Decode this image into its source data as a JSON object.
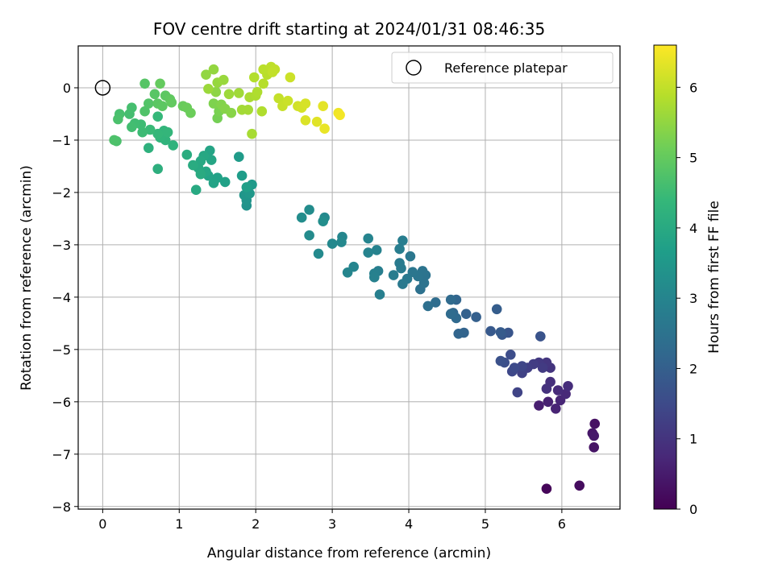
{
  "chart_data": {
    "type": "scatter",
    "title": "FOV centre drift starting at 2024/01/31 08:46:35",
    "xlabel": "Angular distance from reference (arcmin)",
    "ylabel": "Rotation from reference (arcmin)",
    "xlim": [
      -0.32,
      6.76
    ],
    "ylim": [
      -8.05,
      0.8
    ],
    "xticks": [
      0,
      1,
      2,
      3,
      4,
      5,
      6
    ],
    "yticks": [
      0,
      -1,
      -2,
      -3,
      -4,
      -5,
      -6,
      -7,
      -8
    ],
    "xtick_labels": [
      "0",
      "1",
      "2",
      "3",
      "4",
      "5",
      "6"
    ],
    "ytick_labels": [
      "0",
      "−1",
      "−2",
      "−3",
      "−4",
      "−5",
      "−6",
      "−7",
      "−8"
    ],
    "grid": true,
    "legend": {
      "placement": "top-right",
      "entries": [
        {
          "label": "Reference platepar",
          "marker": "open-circle"
        }
      ]
    },
    "reference_point": {
      "x": 0,
      "y": 0
    },
    "colorbar": {
      "label": "Hours from first FF file",
      "colormap": "viridis",
      "range": [
        0,
        6.6
      ],
      "ticks": [
        0,
        1,
        2,
        3,
        4,
        5,
        6
      ],
      "tick_labels": [
        "0",
        "1",
        "2",
        "3",
        "4",
        "5",
        "6"
      ],
      "stops": [
        "#440154",
        "#482878",
        "#3e4989",
        "#31688e",
        "#26828e",
        "#1f9e89",
        "#35b779",
        "#6ece58",
        "#b5de2b",
        "#fde725"
      ]
    },
    "points": [
      [
        5.8,
        -7.66,
        0.1
      ],
      [
        6.23,
        -7.6,
        0.2
      ],
      [
        6.43,
        -6.42,
        0.3
      ],
      [
        6.42,
        -6.87,
        0.35
      ],
      [
        6.4,
        -6.6,
        0.4
      ],
      [
        6.42,
        -6.65,
        0.45
      ],
      [
        5.7,
        -6.07,
        0.55
      ],
      [
        5.82,
        -6.0,
        0.6
      ],
      [
        5.92,
        -6.13,
        0.65
      ],
      [
        5.98,
        -5.97,
        0.7
      ],
      [
        6.05,
        -5.85,
        0.75
      ],
      [
        5.95,
        -5.78,
        0.8
      ],
      [
        6.08,
        -5.7,
        0.85
      ],
      [
        5.85,
        -5.62,
        0.9
      ],
      [
        5.8,
        -5.75,
        0.95
      ],
      [
        5.85,
        -5.35,
        1.0
      ],
      [
        5.8,
        -5.25,
        1.05
      ],
      [
        5.7,
        -5.25,
        1.1
      ],
      [
        5.75,
        -5.35,
        1.15
      ],
      [
        5.63,
        -5.28,
        1.2
      ],
      [
        5.55,
        -5.35,
        1.25
      ],
      [
        5.48,
        -5.45,
        1.3
      ],
      [
        5.42,
        -5.82,
        1.35
      ],
      [
        5.48,
        -5.32,
        1.4
      ],
      [
        5.35,
        -5.42,
        1.45
      ],
      [
        5.38,
        -5.35,
        1.5
      ],
      [
        5.33,
        -5.1,
        1.55
      ],
      [
        5.25,
        -5.25,
        1.6
      ],
      [
        5.2,
        -5.22,
        1.65
      ],
      [
        5.72,
        -4.75,
        1.7
      ],
      [
        5.3,
        -4.68,
        1.75
      ],
      [
        5.22,
        -4.72,
        1.8
      ],
      [
        5.07,
        -4.65,
        1.85
      ],
      [
        5.2,
        -4.67,
        1.9
      ],
      [
        5.15,
        -4.23,
        1.95
      ],
      [
        4.88,
        -4.38,
        2.0
      ],
      [
        4.75,
        -4.32,
        2.05
      ],
      [
        4.72,
        -4.68,
        2.1
      ],
      [
        4.65,
        -4.7,
        2.12
      ],
      [
        4.62,
        -4.05,
        2.15
      ],
      [
        4.58,
        -4.3,
        2.2
      ],
      [
        4.62,
        -4.4,
        2.25
      ],
      [
        4.55,
        -4.05,
        2.28
      ],
      [
        4.55,
        -4.32,
        2.3
      ],
      [
        4.35,
        -4.1,
        2.35
      ],
      [
        4.25,
        -4.17,
        2.4
      ],
      [
        4.15,
        -3.85,
        2.45
      ],
      [
        4.2,
        -3.73,
        2.5
      ],
      [
        4.22,
        -3.58,
        2.52
      ],
      [
        4.18,
        -3.5,
        2.55
      ],
      [
        4.12,
        -3.6,
        2.58
      ],
      [
        4.05,
        -3.52,
        2.6
      ],
      [
        4.02,
        -3.22,
        2.62
      ],
      [
        3.98,
        -3.65,
        2.65
      ],
      [
        3.92,
        -3.75,
        2.68
      ],
      [
        3.9,
        -3.45,
        2.7
      ],
      [
        3.88,
        -3.35,
        2.72
      ],
      [
        3.8,
        -3.58,
        2.75
      ],
      [
        3.92,
        -2.92,
        2.78
      ],
      [
        3.88,
        -3.08,
        2.8
      ],
      [
        3.6,
        -3.5,
        2.82
      ],
      [
        3.62,
        -3.95,
        2.85
      ],
      [
        3.55,
        -3.55,
        2.88
      ],
      [
        3.55,
        -3.62,
        2.9
      ],
      [
        3.58,
        -3.1,
        2.92
      ],
      [
        3.47,
        -3.15,
        2.95
      ],
      [
        3.47,
        -2.88,
        2.98
      ],
      [
        3.28,
        -3.42,
        3.0
      ],
      [
        3.2,
        -3.53,
        3.02
      ],
      [
        3.13,
        -2.85,
        3.05
      ],
      [
        3.12,
        -2.95,
        3.08
      ],
      [
        3.0,
        -2.98,
        3.1
      ],
      [
        2.9,
        -2.48,
        3.12
      ],
      [
        2.82,
        -3.17,
        3.15
      ],
      [
        2.7,
        -2.82,
        3.18
      ],
      [
        2.7,
        -2.33,
        3.2
      ],
      [
        2.6,
        -2.48,
        3.22
      ],
      [
        2.88,
        -2.55,
        3.25
      ],
      [
        1.88,
        -2.25,
        3.35
      ],
      [
        1.88,
        -2.15,
        3.4
      ],
      [
        1.85,
        -2.05,
        3.45
      ],
      [
        1.92,
        -2.02,
        3.5
      ],
      [
        1.95,
        -1.85,
        3.55
      ],
      [
        1.78,
        -1.32,
        3.6
      ],
      [
        1.82,
        -1.68,
        3.65
      ],
      [
        1.88,
        -1.9,
        3.7
      ],
      [
        1.6,
        -1.8,
        3.75
      ],
      [
        1.5,
        -1.72,
        3.78
      ],
      [
        1.45,
        -1.82,
        3.8
      ],
      [
        1.38,
        -1.68,
        3.82
      ],
      [
        1.4,
        -1.2,
        3.85
      ],
      [
        1.42,
        -1.38,
        3.88
      ],
      [
        1.35,
        -1.6,
        3.9
      ],
      [
        1.32,
        -1.3,
        3.92
      ],
      [
        1.28,
        -1.4,
        3.95
      ],
      [
        1.25,
        -1.53,
        3.97
      ],
      [
        1.22,
        -1.95,
        4.0
      ],
      [
        1.28,
        -1.65,
        4.02
      ],
      [
        1.18,
        -1.48,
        4.05
      ],
      [
        1.1,
        -1.28,
        4.08
      ],
      [
        0.72,
        -1.55,
        4.15
      ],
      [
        0.6,
        -1.15,
        4.2
      ],
      [
        0.92,
        -1.1,
        4.25
      ],
      [
        0.82,
        -1.0,
        4.28
      ],
      [
        0.75,
        -0.95,
        4.3
      ],
      [
        0.8,
        -0.82,
        4.32
      ],
      [
        0.85,
        -0.85,
        4.35
      ],
      [
        0.72,
        -0.88,
        4.38
      ],
      [
        0.72,
        -0.55,
        4.4
      ],
      [
        0.62,
        -0.8,
        4.45
      ],
      [
        0.52,
        -0.85,
        4.5
      ],
      [
        0.5,
        -0.7,
        4.52
      ],
      [
        0.42,
        -0.68,
        4.55
      ],
      [
        0.38,
        -0.75,
        4.58
      ],
      [
        0.35,
        -0.5,
        4.6
      ],
      [
        0.38,
        -0.38,
        4.62
      ],
      [
        0.22,
        -0.5,
        4.65
      ],
      [
        0.2,
        -0.6,
        4.68
      ],
      [
        0.18,
        -1.02,
        4.7
      ],
      [
        0.15,
        -1.0,
        4.72
      ],
      [
        0.55,
        -0.45,
        4.75
      ],
      [
        0.6,
        -0.3,
        4.78
      ],
      [
        0.55,
        0.08,
        4.82
      ],
      [
        0.68,
        -0.12,
        4.85
      ],
      [
        0.72,
        -0.3,
        4.88
      ],
      [
        0.78,
        -0.35,
        4.9
      ],
      [
        0.82,
        -0.15,
        4.92
      ],
      [
        0.88,
        -0.22,
        4.95
      ],
      [
        0.9,
        -0.28,
        4.98
      ],
      [
        0.75,
        0.08,
        5.0
      ],
      [
        1.05,
        -0.35,
        5.05
      ],
      [
        1.1,
        -0.38,
        5.08
      ],
      [
        1.15,
        -0.48,
        5.1
      ],
      [
        1.5,
        -0.58,
        5.2
      ],
      [
        1.52,
        -0.45,
        5.25
      ],
      [
        1.45,
        -0.3,
        5.3
      ],
      [
        1.55,
        -0.32,
        5.35
      ],
      [
        1.6,
        -0.4,
        5.38
      ],
      [
        1.68,
        -0.48,
        5.4
      ],
      [
        1.48,
        -0.08,
        5.45
      ],
      [
        1.35,
        0.25,
        5.5
      ],
      [
        1.45,
        0.35,
        5.52
      ],
      [
        1.5,
        0.1,
        5.55
      ],
      [
        1.58,
        0.15,
        5.58
      ],
      [
        1.38,
        -0.02,
        5.6
      ],
      [
        1.65,
        -0.12,
        5.62
      ],
      [
        1.78,
        -0.1,
        5.65
      ],
      [
        1.82,
        -0.42,
        5.68
      ],
      [
        1.9,
        -0.42,
        5.7
      ],
      [
        1.95,
        -0.88,
        5.72
      ],
      [
        1.92,
        -0.18,
        5.75
      ],
      [
        2.0,
        -0.15,
        5.78
      ],
      [
        2.02,
        -0.08,
        5.8
      ],
      [
        2.08,
        -0.45,
        5.82
      ],
      [
        1.98,
        0.2,
        5.85
      ],
      [
        2.1,
        0.08,
        5.88
      ],
      [
        2.15,
        0.25,
        5.9
      ],
      [
        2.1,
        0.35,
        5.92
      ],
      [
        2.2,
        0.4,
        5.95
      ],
      [
        2.25,
        0.35,
        5.98
      ],
      [
        2.22,
        0.3,
        6.0
      ],
      [
        2.3,
        -0.2,
        6.02
      ],
      [
        2.35,
        -0.35,
        6.05
      ],
      [
        2.42,
        -0.25,
        6.08
      ],
      [
        2.45,
        0.2,
        6.1
      ],
      [
        2.55,
        -0.35,
        6.15
      ],
      [
        2.6,
        -0.38,
        6.18
      ],
      [
        2.65,
        -0.3,
        6.2
      ],
      [
        2.65,
        -0.62,
        6.25
      ],
      [
        2.8,
        -0.65,
        6.3
      ],
      [
        2.88,
        -0.35,
        6.35
      ],
      [
        2.9,
        -0.78,
        6.4
      ],
      [
        3.08,
        -0.48,
        6.45
      ],
      [
        3.1,
        -0.52,
        6.5
      ]
    ]
  }
}
